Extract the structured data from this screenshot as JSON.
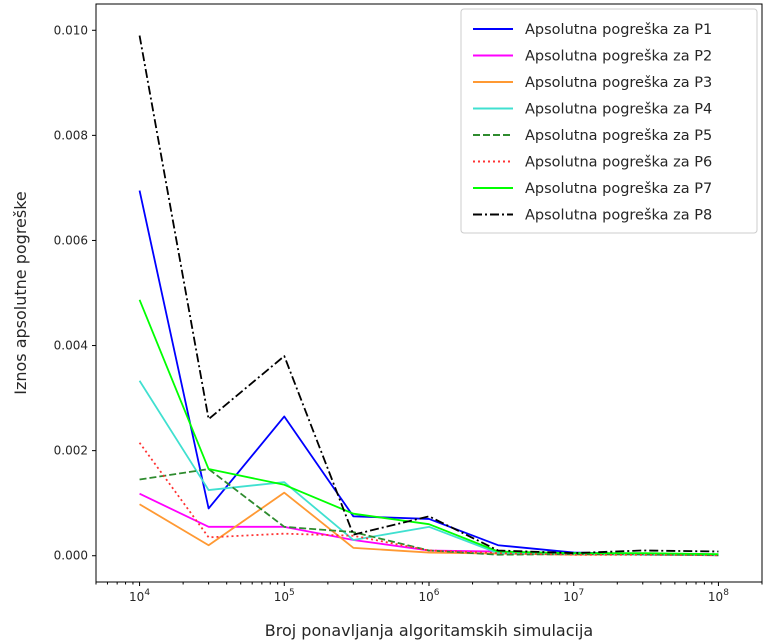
{
  "chart_data": {
    "type": "line",
    "title": "",
    "xlabel": "Broj ponavljanja algoritamskih simulacija",
    "ylabel": "Iznos apsolutne pogreške",
    "xscale": "log",
    "xlim": [
      5000,
      200000000
    ],
    "ylim": [
      -0.0005,
      0.0105
    ],
    "x": [
      10000,
      30000,
      100000,
      300000,
      1000000,
      3000000,
      10000000,
      30000000,
      100000000
    ],
    "x_ticks": [
      {
        "value": 10000,
        "base": "10",
        "exp": "4"
      },
      {
        "value": 100000,
        "base": "10",
        "exp": "5"
      },
      {
        "value": 1000000,
        "base": "10",
        "exp": "6"
      },
      {
        "value": 10000000,
        "base": "10",
        "exp": "7"
      },
      {
        "value": 100000000,
        "base": "10",
        "exp": "8"
      }
    ],
    "y_ticks": [
      {
        "value": 0.0,
        "label": "0.000"
      },
      {
        "value": 0.002,
        "label": "0.002"
      },
      {
        "value": 0.004,
        "label": "0.004"
      },
      {
        "value": 0.006,
        "label": "0.006"
      },
      {
        "value": 0.008,
        "label": "0.008"
      },
      {
        "value": 0.01,
        "label": "0.010"
      }
    ],
    "grid": false,
    "legend_position": "top-right",
    "series": [
      {
        "name": "Apsolutna pogreška za P1",
        "color": "#0000ff",
        "dash": "solid",
        "values": [
          0.00695,
          0.0009,
          0.00265,
          0.00075,
          0.0007,
          0.0002,
          6e-05,
          3e-05,
          2e-05
        ]
      },
      {
        "name": "Apsolutna pogreška za P2",
        "color": "#ff00ff",
        "dash": "solid",
        "values": [
          0.00118,
          0.00055,
          0.00055,
          0.0003,
          0.0001,
          8e-05,
          3e-05,
          2e-05,
          1e-05
        ]
      },
      {
        "name": "Apsolutna pogreška za P3",
        "color": "#ff9933",
        "dash": "solid",
        "values": [
          0.00098,
          0.0002,
          0.0012,
          0.00015,
          6e-05,
          4e-05,
          2e-05,
          2e-05,
          1e-05
        ]
      },
      {
        "name": "Apsolutna pogreška za P4",
        "color": "#40e0d0",
        "dash": "solid",
        "values": [
          0.00333,
          0.00125,
          0.0014,
          0.0003,
          0.00055,
          5e-05,
          3e-05,
          2e-05,
          1e-05
        ]
      },
      {
        "name": "Apsolutna pogreška za P5",
        "color": "#2e8b2e",
        "dash": "dashed",
        "values": [
          0.00145,
          0.00165,
          0.00055,
          0.00045,
          0.0001,
          2e-05,
          3e-05,
          3e-05,
          1e-05
        ]
      },
      {
        "name": "Apsolutna pogreška za P6",
        "color": "#ff3333",
        "dash": "dotted",
        "values": [
          0.00215,
          0.00035,
          0.00042,
          0.00038,
          0.0001,
          5e-05,
          2e-05,
          2e-05,
          1e-05
        ]
      },
      {
        "name": "Apsolutna pogreška za P7",
        "color": "#00ff00",
        "dash": "solid",
        "values": [
          0.00487,
          0.00165,
          0.00135,
          0.0008,
          0.0006,
          8e-05,
          5e-05,
          5e-05,
          3e-05
        ]
      },
      {
        "name": "Apsolutna pogreška za P8",
        "color": "#000000",
        "dash": "dashdot",
        "values": [
          0.0099,
          0.0026,
          0.0038,
          0.0004,
          0.00075,
          0.0001,
          5e-05,
          0.0001,
          8e-05
        ]
      }
    ]
  }
}
